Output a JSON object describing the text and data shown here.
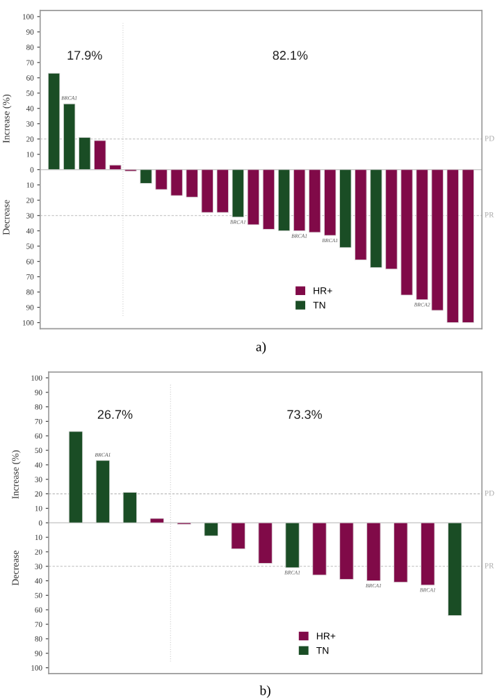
{
  "chart_data": [
    {
      "type": "bar",
      "title": "a)",
      "categories": [
        null,
        null,
        null,
        null,
        null,
        null,
        null,
        null,
        null,
        null,
        null,
        null,
        null,
        null,
        null,
        null,
        null,
        null,
        null,
        null,
        null,
        null,
        null,
        null,
        null,
        null,
        null,
        null
      ],
      "series": [
        {
          "name": "HR+",
          "color": "#800a48",
          "values": [
            null,
            null,
            null,
            19,
            3,
            -1,
            null,
            -13,
            -17,
            -18,
            -28,
            -28,
            null,
            -36,
            -39,
            null,
            -40,
            -41,
            -43,
            null,
            -59,
            null,
            -65,
            -82,
            -85,
            -92,
            -100,
            -100
          ],
          "value_labels": [
            null,
            null,
            null,
            null,
            null,
            null,
            null,
            null,
            null,
            null,
            null,
            null,
            null,
            null,
            null,
            null,
            "BRCA1",
            null,
            "BRCA1",
            null,
            null,
            null,
            null,
            null,
            "BRCA2",
            null,
            null,
            null
          ]
        },
        {
          "name": "TN",
          "color": "#1a4d25",
          "values": [
            63,
            43,
            21,
            null,
            null,
            null,
            -9,
            null,
            null,
            null,
            null,
            null,
            -31,
            null,
            null,
            -40,
            null,
            null,
            null,
            -51,
            null,
            -64,
            null,
            null,
            null,
            null,
            null,
            null
          ],
          "value_labels": [
            null,
            "BRCA1",
            null,
            null,
            null,
            null,
            null,
            null,
            null,
            null,
            null,
            null,
            "BRCA1",
            null,
            null,
            null,
            null,
            null,
            null,
            null,
            null,
            null,
            null,
            null,
            null,
            null,
            null,
            null
          ]
        }
      ],
      "ylabel": "Increase (%)",
      "annotations": [
        "17.9%",
        "82.1%",
        "Decrease"
      ],
      "ylim": [
        -104,
        104
      ],
      "yticks": [
        {
          "value": -100,
          "label": "100"
        },
        {
          "value": -90,
          "label": "90"
        },
        {
          "value": -80,
          "label": "80"
        },
        {
          "value": -70,
          "label": "70"
        },
        {
          "value": -60,
          "label": "60"
        },
        {
          "value": -50,
          "label": "50"
        },
        {
          "value": -40,
          "label": "40"
        },
        {
          "value": -30,
          "label": "30"
        },
        {
          "value": -20,
          "label": "20"
        },
        {
          "value": -10,
          "label": "10"
        },
        0,
        10,
        20,
        30,
        40,
        50,
        60,
        70,
        80,
        90,
        100
      ],
      "ref_lines": [
        {
          "axis": "y",
          "value": 20,
          "label": "PD",
          "color": "#bbbbbb",
          "line_style": "dashed"
        },
        {
          "axis": "y",
          "value": -30,
          "label": "PR",
          "color": "#bbbbbb",
          "line_style": "dashed"
        }
      ],
      "legend": "bottom",
      "grid": false
    },
    {
      "type": "bar",
      "title": "b)",
      "categories": [
        null,
        null,
        null,
        null,
        null,
        null,
        null,
        null,
        null,
        null,
        null,
        null,
        null,
        null,
        null
      ],
      "series": [
        {
          "name": "HR+",
          "color": "#800a48",
          "values": [
            null,
            null,
            null,
            3,
            -1,
            null,
            -18,
            -28,
            null,
            -36,
            -39,
            -40,
            -41,
            -43,
            null
          ],
          "value_labels": [
            null,
            null,
            null,
            null,
            null,
            null,
            null,
            null,
            null,
            null,
            null,
            "BRCA1",
            null,
            "BRCA1",
            null
          ]
        },
        {
          "name": "TN",
          "color": "#1a4d25",
          "values": [
            63,
            43,
            21,
            null,
            null,
            -9,
            null,
            null,
            -31,
            null,
            null,
            null,
            null,
            null,
            -64
          ],
          "value_labels": [
            null,
            "BRCA1",
            null,
            null,
            null,
            null,
            null,
            null,
            "BRCA1",
            null,
            null,
            null,
            null,
            null,
            null
          ]
        }
      ],
      "ylabel": "Increase (%)",
      "annotations": [
        "26.7%",
        "73.3%",
        "Decrease"
      ],
      "ylim": [
        -104,
        104
      ],
      "yticks": [
        {
          "value": -100,
          "label": "100"
        },
        {
          "value": -90,
          "label": "90"
        },
        {
          "value": -80,
          "label": "80"
        },
        {
          "value": -70,
          "label": "70"
        },
        {
          "value": -60,
          "label": "60"
        },
        {
          "value": -50,
          "label": "50"
        },
        {
          "value": -40,
          "label": "40"
        },
        {
          "value": -30,
          "label": "30"
        },
        {
          "value": -20,
          "label": "20"
        },
        {
          "value": -10,
          "label": "10"
        },
        0,
        10,
        20,
        30,
        40,
        50,
        60,
        70,
        80,
        90,
        100
      ],
      "ref_lines": [
        {
          "axis": "y",
          "value": 20,
          "label": "PD",
          "color": "#bbbbbb",
          "line_style": "dashed"
        },
        {
          "axis": "y",
          "value": -30,
          "label": "PR",
          "color": "#bbbbbb",
          "line_style": "dashed"
        }
      ],
      "legend": "bottom",
      "grid": false
    }
  ]
}
